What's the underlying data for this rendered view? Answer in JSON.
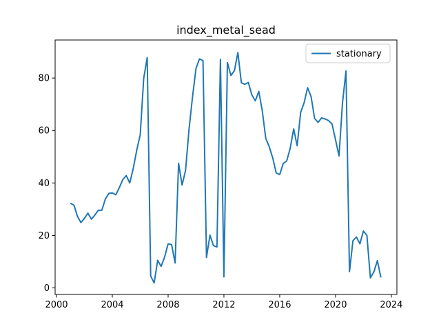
{
  "chart_data": {
    "type": "line",
    "title": "index_metal_sead",
    "xlabel": "",
    "ylabel": "",
    "xlim": [
      1999.9,
      2024.4
    ],
    "ylim": [
      -2.5,
      94.5
    ],
    "xticks": [
      2000,
      2004,
      2008,
      2012,
      2016,
      2020,
      2024
    ],
    "yticks": [
      0,
      20,
      40,
      60,
      80
    ],
    "grid": false,
    "legend_position": "top-right",
    "series": [
      {
        "name": "stationary",
        "color": "#1f77b4",
        "x": [
          2001.0,
          2001.25,
          2001.5,
          2001.75,
          2002.0,
          2002.25,
          2002.5,
          2002.75,
          2003.0,
          2003.25,
          2003.5,
          2003.75,
          2004.0,
          2004.25,
          2004.5,
          2004.75,
          2005.0,
          2005.25,
          2005.5,
          2005.75,
          2006.0,
          2006.25,
          2006.5,
          2006.75,
          2007.0,
          2007.25,
          2007.5,
          2007.75,
          2008.0,
          2008.25,
          2008.5,
          2008.75,
          2009.0,
          2009.25,
          2009.5,
          2009.75,
          2010.0,
          2010.25,
          2010.5,
          2010.75,
          2011.0,
          2011.25,
          2011.5,
          2011.75,
          2012.0,
          2012.25,
          2012.5,
          2012.75,
          2013.0,
          2013.25,
          2013.5,
          2013.75,
          2014.0,
          2014.25,
          2014.5,
          2014.75,
          2015.0,
          2015.25,
          2015.5,
          2015.75,
          2016.0,
          2016.25,
          2016.5,
          2016.75,
          2017.0,
          2017.25,
          2017.5,
          2017.75,
          2018.0,
          2018.25,
          2018.5,
          2018.75,
          2019.0,
          2019.25,
          2019.5,
          2019.75,
          2020.0,
          2020.25,
          2020.5,
          2020.75,
          2021.0,
          2021.25,
          2021.5,
          2021.75,
          2022.0,
          2022.25,
          2022.5,
          2022.75,
          2023.0,
          2023.25
        ],
        "y": [
          32.3,
          31.5,
          27.3,
          24.9,
          26.5,
          28.5,
          26.2,
          27.8,
          29.6,
          29.6,
          33.9,
          36.0,
          36.2,
          35.5,
          38.2,
          41.3,
          42.8,
          40.0,
          45.5,
          52.5,
          58.3,
          79.9,
          87.8,
          4.5,
          1.9,
          10.5,
          8.2,
          11.8,
          16.8,
          16.5,
          9.5,
          47.5,
          39.2,
          44.8,
          60.5,
          72.9,
          83.7,
          87.3,
          86.6,
          11.6,
          20.1,
          16.1,
          15.6,
          87.1,
          4.2,
          85.9,
          81.0,
          82.8,
          89.7,
          78.2,
          77.6,
          78.3,
          73.6,
          71.3,
          74.9,
          67.5,
          57.0,
          53.8,
          49.5,
          43.8,
          43.2,
          47.4,
          48.4,
          53.2,
          60.6,
          54.2,
          66.9,
          70.6,
          76.3,
          72.9,
          64.6,
          63.1,
          64.8,
          64.4,
          63.8,
          62.5,
          56.5,
          50.3,
          70.5,
          82.7,
          6.2,
          18.0,
          19.4,
          16.8,
          21.7,
          20.0,
          3.8,
          6.1,
          10.4,
          4.0
        ]
      }
    ]
  }
}
